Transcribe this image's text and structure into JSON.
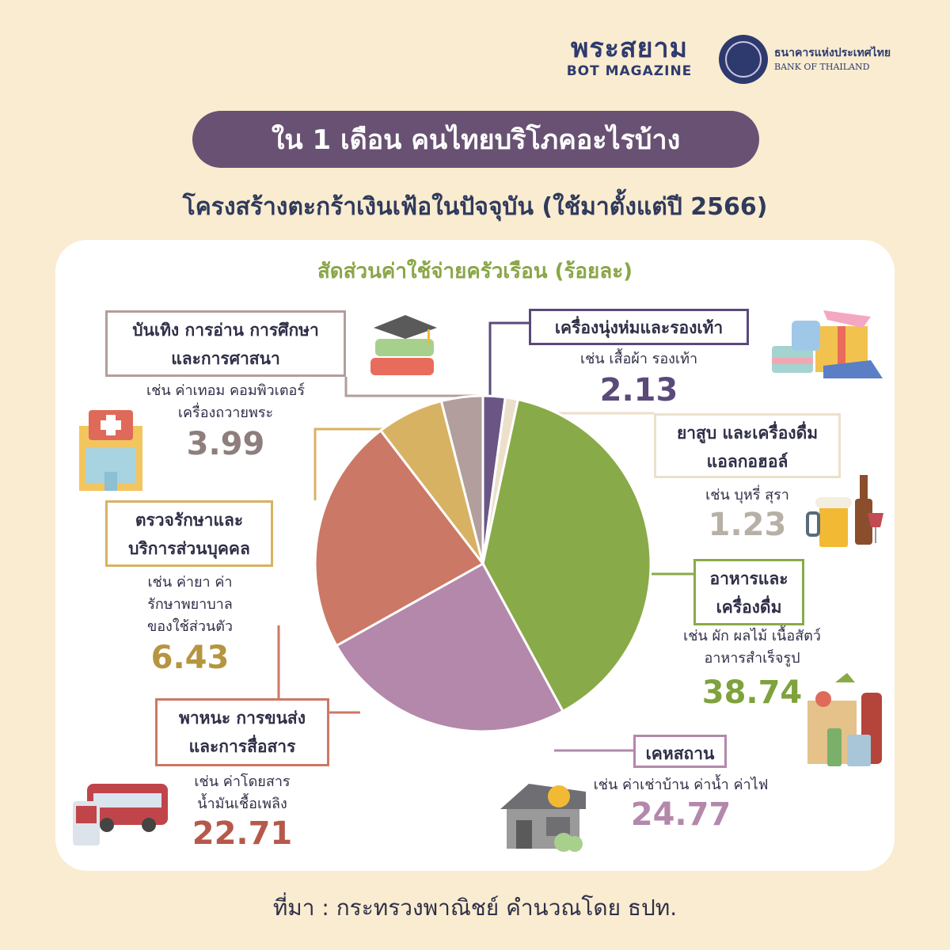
{
  "header": {
    "magazine_title": "พระสยาม",
    "magazine_sub": "BOT MAGAZINE",
    "bank_th": "ธนาคารแห่งประเทศไทย",
    "bank_en": "BANK OF THAILAND"
  },
  "title": "ใน 1 เดือน คนไทยบริโภคอะไรบ้าง",
  "subtitle": "โครงสร้างตะกร้าเงินเฟ้อในปัจจุบัน (ใช้มาตั้งแต่ปี 2566)",
  "source": "ที่มา : กระทรวงพาณิชย์ คำนวณโดย ธปท.",
  "chart_data": {
    "type": "pie",
    "title": "สัดส่วนค่าใช้จ่ายครัวเรือน (ร้อยละ)",
    "slices": [
      {
        "label_lines": [
          "เครื่องนุ่งห่มและรองเท้า"
        ],
        "example_lines": [
          "เช่น เสื้อผ้า รองเท้า"
        ],
        "value": 2.13,
        "value_text": "2.13",
        "color": "#6b5585",
        "value_color": "#5a4a7a"
      },
      {
        "label_lines": [
          "ยาสูบ และเครื่องดื่ม",
          "แอลกอฮอล์"
        ],
        "example_lines": [
          "เช่น บุหรี่ สุรา"
        ],
        "value": 1.23,
        "value_text": "1.23",
        "color": "#ede0cb",
        "value_color": "#b8b0a6"
      },
      {
        "label_lines": [
          "อาหารและ",
          "เครื่องดื่ม"
        ],
        "example_lines": [
          "เช่น ผัก ผลไม้ เนื้อสัตว์",
          "อาหารสำเร็จรูป"
        ],
        "value": 38.74,
        "value_text": "38.74",
        "color": "#89aa48",
        "value_color": "#7ea23c"
      },
      {
        "label_lines": [
          "เคหสถาน"
        ],
        "example_lines": [
          "เช่น ค่าเช่าบ้าน ค่าน้ำ ค่าไฟ"
        ],
        "value": 24.77,
        "value_text": "24.77",
        "color": "#b388ab",
        "value_color": "#b388ab"
      },
      {
        "label_lines": [
          "พาหนะ การขนส่ง",
          "และการสื่อสาร"
        ],
        "example_lines": [
          "เช่น ค่าโดยสาร",
          "น้ำมันเชื้อเพลิง"
        ],
        "value": 22.71,
        "value_text": "22.71",
        "color": "#cc7866",
        "value_color": "#b5594a"
      },
      {
        "label_lines": [
          "ตรวจรักษาและ",
          "บริการส่วนบุคคล"
        ],
        "example_lines": [
          "เช่น ค่ายา ค่า",
          "รักษาพยาบาล",
          "ของใช้ส่วนตัว"
        ],
        "value": 6.43,
        "value_text": "6.43",
        "color": "#d8b263",
        "value_color": "#b5953f"
      },
      {
        "label_lines": [
          "บันเทิง การอ่าน การศึกษา",
          "และการศาสนา"
        ],
        "example_lines": [
          "เช่น ค่าเทอม คอมพิวเตอร์",
          "เครื่องถวายพระ"
        ],
        "value": 3.99,
        "value_text": "3.99",
        "color": "#b29e9c",
        "value_color": "#8e7e7c"
      }
    ]
  },
  "icons": [
    "clothes-icon",
    "beer-wine-icon",
    "grocery-icon",
    "house-icon",
    "bus-icon",
    "hospital-icon",
    "books-icon"
  ]
}
